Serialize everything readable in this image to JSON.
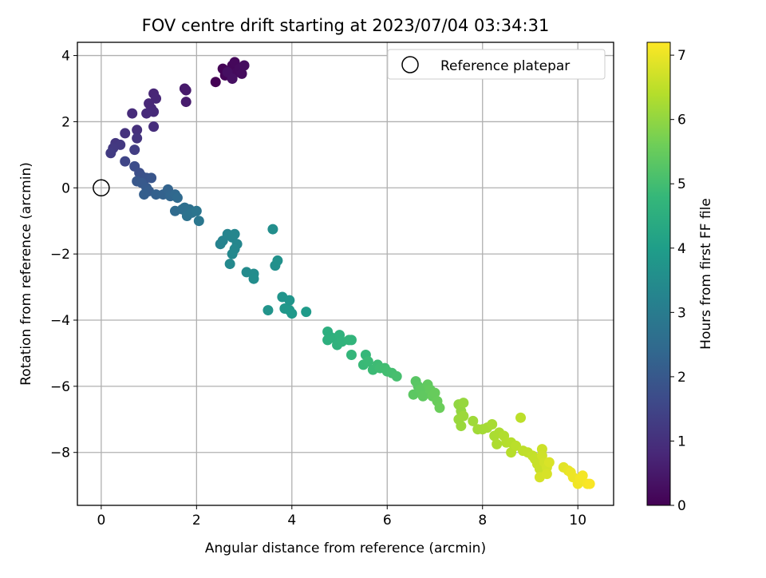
{
  "chart_data": {
    "type": "scatter",
    "title": "FOV centre drift starting at 2023/07/04 03:34:31",
    "xlabel": "Angular distance from reference (arcmin)",
    "ylabel": "Rotation from reference (arcmin)",
    "xlim": [
      -0.5,
      10.75
    ],
    "ylim": [
      -9.6,
      4.4
    ],
    "xticks": [
      0,
      2,
      4,
      6,
      8,
      10
    ],
    "yticks": [
      -8,
      -6,
      -4,
      -2,
      0,
      2,
      4
    ],
    "grid": true,
    "legend": {
      "placement": "top-right",
      "entries": [
        "Reference platepar"
      ]
    },
    "reference_point": {
      "x": 0,
      "y": 0,
      "label": "Reference platepar"
    },
    "colorbar": {
      "label": "Hours from first FF file",
      "colormap": "viridis",
      "range": [
        0,
        7.2
      ],
      "ticks": [
        0,
        1,
        2,
        3,
        4,
        5,
        6,
        7
      ]
    },
    "colormap_stops": [
      "#440154",
      "#482878",
      "#3e4989",
      "#31688e",
      "#26828e",
      "#1f9e89",
      "#35b779",
      "#6ece58",
      "#b5de2b",
      "#fde725"
    ],
    "points": [
      {
        "x": 2.4,
        "y": 3.2,
        "h": 0.0
      },
      {
        "x": 2.55,
        "y": 3.6,
        "h": 0.05
      },
      {
        "x": 2.6,
        "y": 3.4,
        "h": 0.08
      },
      {
        "x": 2.7,
        "y": 3.55,
        "h": 0.1
      },
      {
        "x": 2.75,
        "y": 3.7,
        "h": 0.12
      },
      {
        "x": 2.8,
        "y": 3.8,
        "h": 0.15
      },
      {
        "x": 2.85,
        "y": 3.5,
        "h": 0.18
      },
      {
        "x": 2.9,
        "y": 3.6,
        "h": 0.2
      },
      {
        "x": 2.95,
        "y": 3.45,
        "h": 0.22
      },
      {
        "x": 3.0,
        "y": 3.7,
        "h": 0.25
      },
      {
        "x": 2.65,
        "y": 3.5,
        "h": 0.28
      },
      {
        "x": 2.75,
        "y": 3.3,
        "h": 0.3
      },
      {
        "x": 1.75,
        "y": 3.0,
        "h": 0.5
      },
      {
        "x": 1.78,
        "y": 2.95,
        "h": 0.52
      },
      {
        "x": 1.78,
        "y": 2.6,
        "h": 0.55
      },
      {
        "x": 1.1,
        "y": 2.85,
        "h": 0.75
      },
      {
        "x": 1.15,
        "y": 2.7,
        "h": 0.78
      },
      {
        "x": 1.0,
        "y": 2.55,
        "h": 0.8
      },
      {
        "x": 1.05,
        "y": 2.4,
        "h": 0.82
      },
      {
        "x": 1.1,
        "y": 2.3,
        "h": 0.85
      },
      {
        "x": 0.95,
        "y": 2.25,
        "h": 0.88
      },
      {
        "x": 0.65,
        "y": 2.25,
        "h": 0.9
      },
      {
        "x": 1.1,
        "y": 1.85,
        "h": 0.95
      },
      {
        "x": 0.75,
        "y": 1.75,
        "h": 1.0
      },
      {
        "x": 0.5,
        "y": 1.65,
        "h": 1.05
      },
      {
        "x": 0.75,
        "y": 1.5,
        "h": 1.1
      },
      {
        "x": 0.3,
        "y": 1.35,
        "h": 1.15
      },
      {
        "x": 0.4,
        "y": 1.3,
        "h": 1.18
      },
      {
        "x": 0.25,
        "y": 1.2,
        "h": 1.2
      },
      {
        "x": 0.2,
        "y": 1.05,
        "h": 1.25
      },
      {
        "x": 0.7,
        "y": 1.15,
        "h": 1.3
      },
      {
        "x": 0.5,
        "y": 0.8,
        "h": 1.5
      },
      {
        "x": 0.7,
        "y": 0.65,
        "h": 1.7
      },
      {
        "x": 0.8,
        "y": 0.45,
        "h": 1.75
      },
      {
        "x": 0.85,
        "y": 0.35,
        "h": 1.8
      },
      {
        "x": 0.95,
        "y": 0.3,
        "h": 1.85
      },
      {
        "x": 1.05,
        "y": 0.3,
        "h": 1.9
      },
      {
        "x": 0.75,
        "y": 0.2,
        "h": 1.95
      },
      {
        "x": 0.85,
        "y": 0.15,
        "h": 2.0
      },
      {
        "x": 0.95,
        "y": 0.0,
        "h": 2.05
      },
      {
        "x": 1.0,
        "y": -0.1,
        "h": 2.1
      },
      {
        "x": 0.9,
        "y": -0.2,
        "h": 2.15
      },
      {
        "x": 1.15,
        "y": -0.2,
        "h": 2.2
      },
      {
        "x": 1.3,
        "y": -0.2,
        "h": 2.25
      },
      {
        "x": 1.4,
        "y": -0.05,
        "h": 2.3
      },
      {
        "x": 1.45,
        "y": -0.25,
        "h": 2.35
      },
      {
        "x": 1.55,
        "y": -0.2,
        "h": 2.4
      },
      {
        "x": 1.6,
        "y": -0.3,
        "h": 2.45
      },
      {
        "x": 1.55,
        "y": -0.7,
        "h": 2.5
      },
      {
        "x": 1.7,
        "y": -0.65,
        "h": 2.55
      },
      {
        "x": 1.75,
        "y": -0.6,
        "h": 2.6
      },
      {
        "x": 1.85,
        "y": -0.65,
        "h": 2.65
      },
      {
        "x": 1.8,
        "y": -0.85,
        "h": 2.7
      },
      {
        "x": 1.9,
        "y": -0.75,
        "h": 2.75
      },
      {
        "x": 2.0,
        "y": -0.7,
        "h": 2.8
      },
      {
        "x": 2.05,
        "y": -1.0,
        "h": 2.85
      },
      {
        "x": 2.5,
        "y": -1.7,
        "h": 3.2
      },
      {
        "x": 2.55,
        "y": -1.6,
        "h": 3.22
      },
      {
        "x": 2.65,
        "y": -1.4,
        "h": 3.25
      },
      {
        "x": 2.75,
        "y": -1.5,
        "h": 3.28
      },
      {
        "x": 2.8,
        "y": -1.4,
        "h": 3.3
      },
      {
        "x": 2.85,
        "y": -1.7,
        "h": 3.32
      },
      {
        "x": 2.8,
        "y": -1.85,
        "h": 3.35
      },
      {
        "x": 2.75,
        "y": -2.0,
        "h": 3.38
      },
      {
        "x": 2.7,
        "y": -2.3,
        "h": 3.4
      },
      {
        "x": 3.05,
        "y": -2.55,
        "h": 3.45
      },
      {
        "x": 3.2,
        "y": -2.6,
        "h": 3.48
      },
      {
        "x": 3.2,
        "y": -2.75,
        "h": 3.5
      },
      {
        "x": 3.6,
        "y": -1.25,
        "h": 3.55
      },
      {
        "x": 3.65,
        "y": -2.35,
        "h": 3.6
      },
      {
        "x": 3.7,
        "y": -2.2,
        "h": 3.62
      },
      {
        "x": 3.5,
        "y": -3.7,
        "h": 3.7
      },
      {
        "x": 3.8,
        "y": -3.3,
        "h": 3.72
      },
      {
        "x": 3.95,
        "y": -3.4,
        "h": 3.75
      },
      {
        "x": 3.85,
        "y": -3.65,
        "h": 3.8
      },
      {
        "x": 3.95,
        "y": -3.7,
        "h": 3.82
      },
      {
        "x": 4.0,
        "y": -3.8,
        "h": 3.85
      },
      {
        "x": 4.3,
        "y": -3.75,
        "h": 3.9
      },
      {
        "x": 4.75,
        "y": -4.35,
        "h": 4.5
      },
      {
        "x": 4.8,
        "y": -4.5,
        "h": 4.52
      },
      {
        "x": 4.75,
        "y": -4.6,
        "h": 4.55
      },
      {
        "x": 4.9,
        "y": -4.55,
        "h": 4.58
      },
      {
        "x": 4.95,
        "y": -4.75,
        "h": 4.6
      },
      {
        "x": 5.0,
        "y": -4.45,
        "h": 4.62
      },
      {
        "x": 5.05,
        "y": -4.65,
        "h": 4.65
      },
      {
        "x": 5.2,
        "y": -4.6,
        "h": 4.68
      },
      {
        "x": 5.25,
        "y": -4.6,
        "h": 4.7
      },
      {
        "x": 5.25,
        "y": -5.05,
        "h": 4.75
      },
      {
        "x": 5.55,
        "y": -5.05,
        "h": 4.8
      },
      {
        "x": 5.5,
        "y": -5.35,
        "h": 4.85
      },
      {
        "x": 5.6,
        "y": -5.25,
        "h": 4.88
      },
      {
        "x": 5.7,
        "y": -5.5,
        "h": 4.9
      },
      {
        "x": 5.8,
        "y": -5.35,
        "h": 4.92
      },
      {
        "x": 5.85,
        "y": -5.45,
        "h": 4.95
      },
      {
        "x": 5.95,
        "y": -5.45,
        "h": 4.98
      },
      {
        "x": 6.0,
        "y": -5.55,
        "h": 5.0
      },
      {
        "x": 6.1,
        "y": -5.6,
        "h": 5.02
      },
      {
        "x": 6.2,
        "y": -5.7,
        "h": 5.05
      },
      {
        "x": 6.6,
        "y": -5.85,
        "h": 5.3
      },
      {
        "x": 6.65,
        "y": -6.0,
        "h": 5.32
      },
      {
        "x": 6.55,
        "y": -6.25,
        "h": 5.35
      },
      {
        "x": 6.7,
        "y": -6.1,
        "h": 5.38
      },
      {
        "x": 6.75,
        "y": -6.3,
        "h": 5.4
      },
      {
        "x": 6.85,
        "y": -5.95,
        "h": 5.42
      },
      {
        "x": 6.9,
        "y": -6.1,
        "h": 5.45
      },
      {
        "x": 6.95,
        "y": -6.3,
        "h": 5.48
      },
      {
        "x": 7.0,
        "y": -6.2,
        "h": 5.5
      },
      {
        "x": 7.05,
        "y": -6.45,
        "h": 5.52
      },
      {
        "x": 7.1,
        "y": -6.65,
        "h": 5.55
      },
      {
        "x": 7.5,
        "y": -6.55,
        "h": 6.0
      },
      {
        "x": 7.55,
        "y": -6.75,
        "h": 6.02
      },
      {
        "x": 7.6,
        "y": -6.5,
        "h": 6.05
      },
      {
        "x": 7.5,
        "y": -7.0,
        "h": 6.08
      },
      {
        "x": 7.55,
        "y": -7.2,
        "h": 6.1
      },
      {
        "x": 7.6,
        "y": -6.9,
        "h": 6.12
      },
      {
        "x": 7.8,
        "y": -7.05,
        "h": 6.15
      },
      {
        "x": 7.9,
        "y": -7.3,
        "h": 6.18
      },
      {
        "x": 8.0,
        "y": -7.3,
        "h": 6.2
      },
      {
        "x": 8.1,
        "y": -7.25,
        "h": 6.22
      },
      {
        "x": 8.2,
        "y": -7.15,
        "h": 6.25
      },
      {
        "x": 8.25,
        "y": -7.5,
        "h": 6.28
      },
      {
        "x": 8.35,
        "y": -7.4,
        "h": 6.3
      },
      {
        "x": 8.3,
        "y": -7.75,
        "h": 6.32
      },
      {
        "x": 8.45,
        "y": -7.5,
        "h": 6.35
      },
      {
        "x": 8.5,
        "y": -7.7,
        "h": 6.38
      },
      {
        "x": 8.6,
        "y": -7.7,
        "h": 6.4
      },
      {
        "x": 8.6,
        "y": -8.0,
        "h": 6.42
      },
      {
        "x": 8.7,
        "y": -7.8,
        "h": 6.45
      },
      {
        "x": 8.8,
        "y": -6.95,
        "h": 6.48
      },
      {
        "x": 8.85,
        "y": -7.95,
        "h": 6.5
      },
      {
        "x": 8.95,
        "y": -8.0,
        "h": 6.52
      },
      {
        "x": 9.05,
        "y": -8.1,
        "h": 6.55
      },
      {
        "x": 9.1,
        "y": -8.2,
        "h": 6.58
      },
      {
        "x": 9.15,
        "y": -8.35,
        "h": 6.6
      },
      {
        "x": 9.2,
        "y": -8.5,
        "h": 6.62
      },
      {
        "x": 9.25,
        "y": -7.9,
        "h": 6.65
      },
      {
        "x": 9.25,
        "y": -8.1,
        "h": 6.68
      },
      {
        "x": 9.3,
        "y": -8.3,
        "h": 6.7
      },
      {
        "x": 9.35,
        "y": -8.45,
        "h": 6.72
      },
      {
        "x": 9.2,
        "y": -8.75,
        "h": 6.75
      },
      {
        "x": 9.35,
        "y": -8.65,
        "h": 6.78
      },
      {
        "x": 9.4,
        "y": -8.3,
        "h": 6.8
      },
      {
        "x": 9.7,
        "y": -8.45,
        "h": 6.9
      },
      {
        "x": 9.8,
        "y": -8.55,
        "h": 6.95
      },
      {
        "x": 9.85,
        "y": -8.6,
        "h": 7.0
      },
      {
        "x": 9.9,
        "y": -8.75,
        "h": 7.02
      },
      {
        "x": 10.0,
        "y": -8.95,
        "h": 7.05
      },
      {
        "x": 10.05,
        "y": -8.8,
        "h": 7.08
      },
      {
        "x": 10.1,
        "y": -8.7,
        "h": 7.1
      },
      {
        "x": 10.2,
        "y": -8.95,
        "h": 7.12
      },
      {
        "x": 10.25,
        "y": -8.95,
        "h": 7.15
      }
    ]
  }
}
